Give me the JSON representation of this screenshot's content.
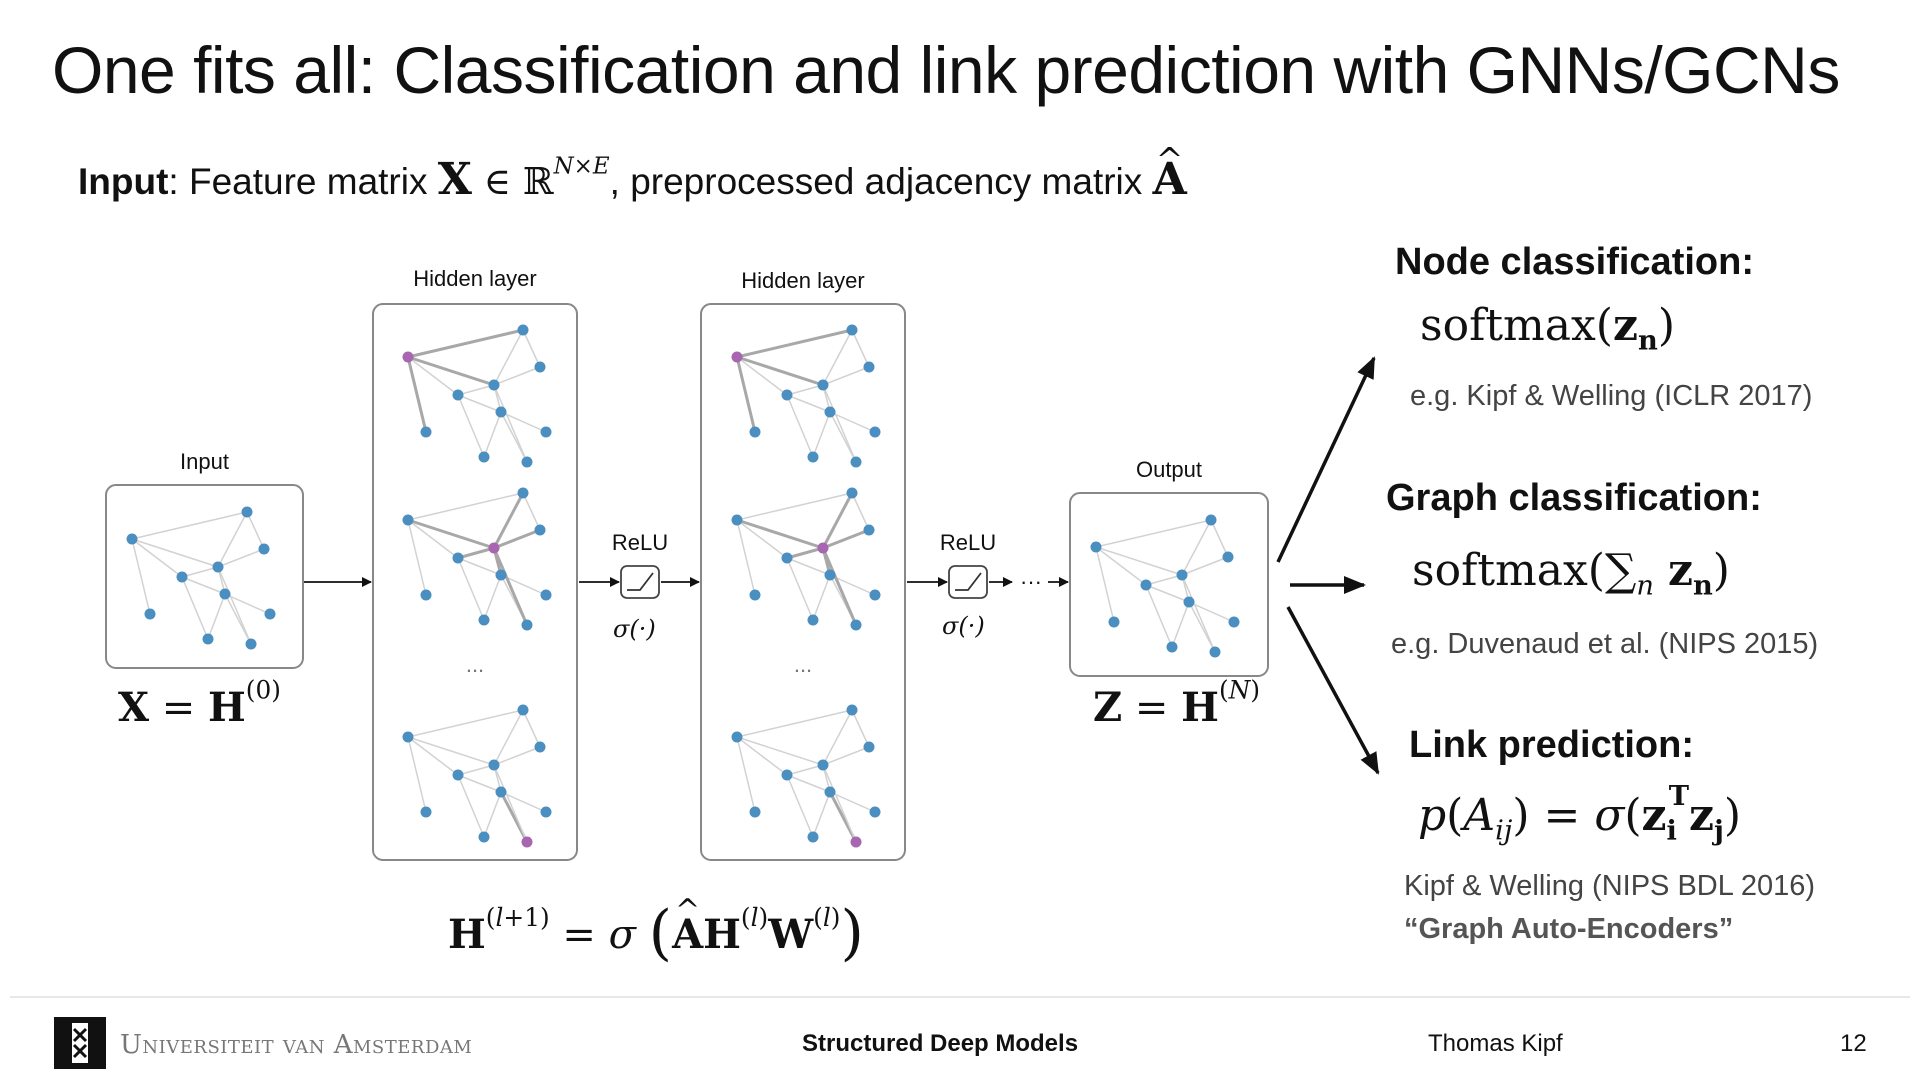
{
  "slide": {
    "title": "One fits all: Classification and link prediction with GNNs/GCNs",
    "input_label": "Input",
    "input_text_1": ": Feature matrix ",
    "input_text_2": ", preprocessed adjacency matrix "
  },
  "diagram": {
    "input_label": "Input",
    "hidden1_label": "Hidden layer",
    "hidden2_label": "Hidden layer",
    "output_label": "Output",
    "relu1_label": "ReLU",
    "relu2_label": "ReLU",
    "sigma1": "σ(·)",
    "sigma2": "σ(·)",
    "ellipsis1": "...",
    "ellipsis2": "...",
    "dots_arrow": "···",
    "eq_input": "X = H(0)",
    "eq_output": "Z = H(N)",
    "eq_propagation": "H(l+1) = σ(ÂH(l)W(l))"
  },
  "tasks": {
    "node": {
      "heading": "Node classification:",
      "formula": "softmax(zn)",
      "citation": "e.g. Kipf & Welling (ICLR 2017)"
    },
    "graph": {
      "heading": "Graph classification:",
      "formula": "softmax(∑n zn)",
      "citation": "e.g. Duvenaud et al. (NIPS 2015)"
    },
    "link": {
      "heading": "Link prediction:",
      "formula": "p(Aij) = σ(ziTzj)",
      "citation": "Kipf & Welling (NIPS BDL 2016)",
      "subtitle": "“Graph Auto-Encoders”"
    }
  },
  "footer": {
    "university": "Universiteit van Amsterdam",
    "course": "Structured Deep Models",
    "author": "Thomas Kipf",
    "page": "12"
  },
  "colors": {
    "node": "#4a8fc0",
    "highlight_node": "#a966b0",
    "edge": "#d2d2d2",
    "edge_highlight": "#a8a8a8",
    "box_border": "#888888"
  },
  "icons": {
    "logo": "uva-logo-icon",
    "relu": "relu-activation-icon"
  }
}
